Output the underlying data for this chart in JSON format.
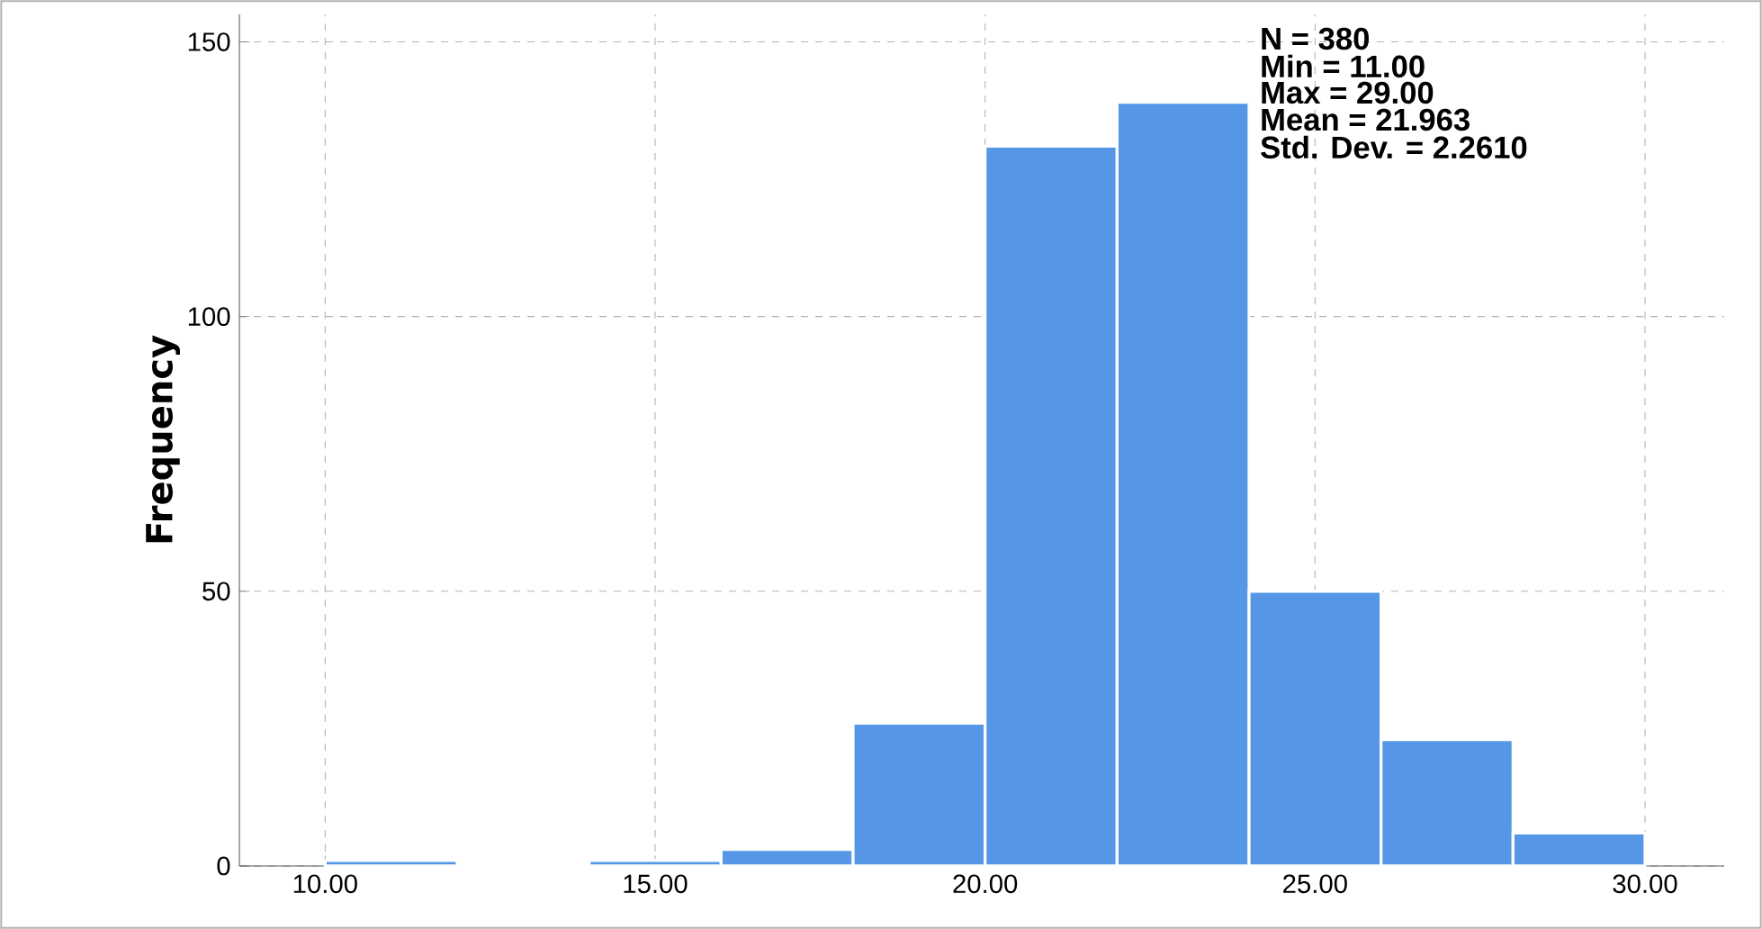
{
  "chart_data": {
    "type": "histogram",
    "ylabel": "Frequency",
    "bins": [
      10,
      12,
      14,
      16,
      18,
      20,
      22,
      24,
      26,
      28,
      30
    ],
    "values": [
      1,
      0,
      1,
      3,
      26,
      131,
      139,
      50,
      23,
      6
    ],
    "color": "#5597e6",
    "xlim": [
      8.7,
      31.2
    ],
    "ylim": [
      0,
      155
    ],
    "xticks": [
      {
        "value": 10,
        "label": "10.00"
      },
      {
        "value": 15,
        "label": "15.00"
      },
      {
        "value": 20,
        "label": "20.00"
      },
      {
        "value": 25,
        "label": "25.00"
      },
      {
        "value": 30,
        "label": "30.00"
      }
    ],
    "yticks": [
      0,
      50,
      100,
      150
    ],
    "grid": true,
    "annotations": [
      "N = 380",
      "Min = 11.00",
      "Max = 29.00",
      "Mean = 21.963",
      "Std. Dev. = 2.2610"
    ]
  }
}
